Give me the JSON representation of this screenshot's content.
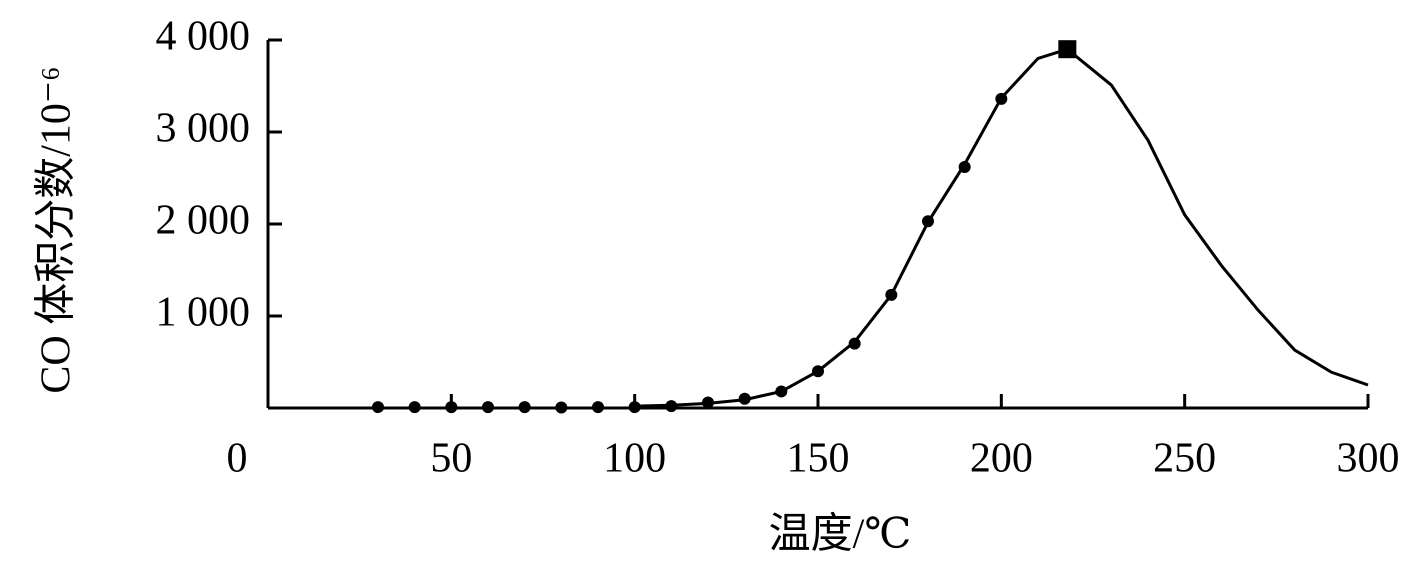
{
  "chart_data": {
    "type": "line",
    "x_label": "温度/℃",
    "y_label": "CO 体积分数/10⁻⁶",
    "xlim": [
      0,
      300
    ],
    "ylim": [
      0,
      4000
    ],
    "xticks": [
      0,
      50,
      100,
      150,
      200,
      250,
      300
    ],
    "yticks": [
      {
        "value": 1000,
        "label": "1 000"
      },
      {
        "value": 2000,
        "label": "2 000"
      },
      {
        "value": 3000,
        "label": "3 000"
      },
      {
        "value": 4000,
        "label": "4 000"
      }
    ],
    "color": "#000000",
    "points": {
      "x": [
        30,
        40,
        50,
        60,
        70,
        80,
        90,
        100,
        110,
        120,
        130,
        140,
        150,
        160,
        170,
        180,
        190,
        200
      ],
      "values": [
        10,
        10,
        10,
        10,
        10,
        5,
        10,
        10,
        20,
        60,
        100,
        180,
        400,
        700,
        1230,
        2030,
        2620,
        3360
      ]
    },
    "peak": {
      "x": 218,
      "value": 3900
    },
    "curve": {
      "x": [
        100,
        110,
        120,
        130,
        140,
        150,
        160,
        170,
        180,
        190,
        200,
        210,
        218,
        230,
        240,
        250,
        260,
        270,
        280,
        290,
        300
      ],
      "values": [
        20,
        30,
        50,
        90,
        180,
        400,
        720,
        1230,
        2020,
        2650,
        3370,
        3800,
        3900,
        3510,
        2910,
        2100,
        1550,
        1065,
        630,
        390,
        250
      ]
    }
  }
}
